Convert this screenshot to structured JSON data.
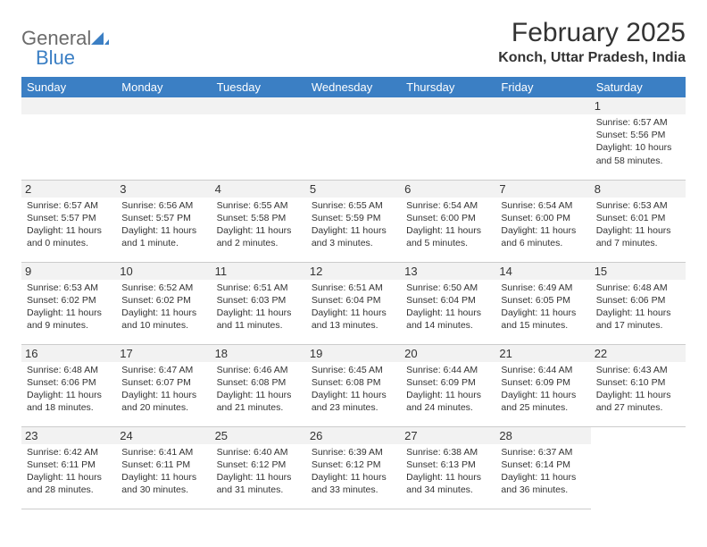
{
  "logo": {
    "text_gray": "General",
    "text_blue": "Blue",
    "shape_color": "#3b7fc4"
  },
  "header": {
    "month_title": "February 2025",
    "location": "Konch, Uttar Pradesh, India"
  },
  "colors": {
    "header_bg": "#3b7fc4",
    "header_text": "#ffffff",
    "spacer_bg": "#f2f2f2",
    "border": "#cccccc",
    "text": "#333333"
  },
  "weekdays": [
    "Sunday",
    "Monday",
    "Tuesday",
    "Wednesday",
    "Thursday",
    "Friday",
    "Saturday"
  ],
  "weeks": [
    [
      null,
      null,
      null,
      null,
      null,
      null,
      {
        "n": "1",
        "sunrise": "Sunrise: 6:57 AM",
        "sunset": "Sunset: 5:56 PM",
        "daylight": "Daylight: 10 hours and 58 minutes."
      }
    ],
    [
      {
        "n": "2",
        "sunrise": "Sunrise: 6:57 AM",
        "sunset": "Sunset: 5:57 PM",
        "daylight": "Daylight: 11 hours and 0 minutes."
      },
      {
        "n": "3",
        "sunrise": "Sunrise: 6:56 AM",
        "sunset": "Sunset: 5:57 PM",
        "daylight": "Daylight: 11 hours and 1 minute."
      },
      {
        "n": "4",
        "sunrise": "Sunrise: 6:55 AM",
        "sunset": "Sunset: 5:58 PM",
        "daylight": "Daylight: 11 hours and 2 minutes."
      },
      {
        "n": "5",
        "sunrise": "Sunrise: 6:55 AM",
        "sunset": "Sunset: 5:59 PM",
        "daylight": "Daylight: 11 hours and 3 minutes."
      },
      {
        "n": "6",
        "sunrise": "Sunrise: 6:54 AM",
        "sunset": "Sunset: 6:00 PM",
        "daylight": "Daylight: 11 hours and 5 minutes."
      },
      {
        "n": "7",
        "sunrise": "Sunrise: 6:54 AM",
        "sunset": "Sunset: 6:00 PM",
        "daylight": "Daylight: 11 hours and 6 minutes."
      },
      {
        "n": "8",
        "sunrise": "Sunrise: 6:53 AM",
        "sunset": "Sunset: 6:01 PM",
        "daylight": "Daylight: 11 hours and 7 minutes."
      }
    ],
    [
      {
        "n": "9",
        "sunrise": "Sunrise: 6:53 AM",
        "sunset": "Sunset: 6:02 PM",
        "daylight": "Daylight: 11 hours and 9 minutes."
      },
      {
        "n": "10",
        "sunrise": "Sunrise: 6:52 AM",
        "sunset": "Sunset: 6:02 PM",
        "daylight": "Daylight: 11 hours and 10 minutes."
      },
      {
        "n": "11",
        "sunrise": "Sunrise: 6:51 AM",
        "sunset": "Sunset: 6:03 PM",
        "daylight": "Daylight: 11 hours and 11 minutes."
      },
      {
        "n": "12",
        "sunrise": "Sunrise: 6:51 AM",
        "sunset": "Sunset: 6:04 PM",
        "daylight": "Daylight: 11 hours and 13 minutes."
      },
      {
        "n": "13",
        "sunrise": "Sunrise: 6:50 AM",
        "sunset": "Sunset: 6:04 PM",
        "daylight": "Daylight: 11 hours and 14 minutes."
      },
      {
        "n": "14",
        "sunrise": "Sunrise: 6:49 AM",
        "sunset": "Sunset: 6:05 PM",
        "daylight": "Daylight: 11 hours and 15 minutes."
      },
      {
        "n": "15",
        "sunrise": "Sunrise: 6:48 AM",
        "sunset": "Sunset: 6:06 PM",
        "daylight": "Daylight: 11 hours and 17 minutes."
      }
    ],
    [
      {
        "n": "16",
        "sunrise": "Sunrise: 6:48 AM",
        "sunset": "Sunset: 6:06 PM",
        "daylight": "Daylight: 11 hours and 18 minutes."
      },
      {
        "n": "17",
        "sunrise": "Sunrise: 6:47 AM",
        "sunset": "Sunset: 6:07 PM",
        "daylight": "Daylight: 11 hours and 20 minutes."
      },
      {
        "n": "18",
        "sunrise": "Sunrise: 6:46 AM",
        "sunset": "Sunset: 6:08 PM",
        "daylight": "Daylight: 11 hours and 21 minutes."
      },
      {
        "n": "19",
        "sunrise": "Sunrise: 6:45 AM",
        "sunset": "Sunset: 6:08 PM",
        "daylight": "Daylight: 11 hours and 23 minutes."
      },
      {
        "n": "20",
        "sunrise": "Sunrise: 6:44 AM",
        "sunset": "Sunset: 6:09 PM",
        "daylight": "Daylight: 11 hours and 24 minutes."
      },
      {
        "n": "21",
        "sunrise": "Sunrise: 6:44 AM",
        "sunset": "Sunset: 6:09 PM",
        "daylight": "Daylight: 11 hours and 25 minutes."
      },
      {
        "n": "22",
        "sunrise": "Sunrise: 6:43 AM",
        "sunset": "Sunset: 6:10 PM",
        "daylight": "Daylight: 11 hours and 27 minutes."
      }
    ],
    [
      {
        "n": "23",
        "sunrise": "Sunrise: 6:42 AM",
        "sunset": "Sunset: 6:11 PM",
        "daylight": "Daylight: 11 hours and 28 minutes."
      },
      {
        "n": "24",
        "sunrise": "Sunrise: 6:41 AM",
        "sunset": "Sunset: 6:11 PM",
        "daylight": "Daylight: 11 hours and 30 minutes."
      },
      {
        "n": "25",
        "sunrise": "Sunrise: 6:40 AM",
        "sunset": "Sunset: 6:12 PM",
        "daylight": "Daylight: 11 hours and 31 minutes."
      },
      {
        "n": "26",
        "sunrise": "Sunrise: 6:39 AM",
        "sunset": "Sunset: 6:12 PM",
        "daylight": "Daylight: 11 hours and 33 minutes."
      },
      {
        "n": "27",
        "sunrise": "Sunrise: 6:38 AM",
        "sunset": "Sunset: 6:13 PM",
        "daylight": "Daylight: 11 hours and 34 minutes."
      },
      {
        "n": "28",
        "sunrise": "Sunrise: 6:37 AM",
        "sunset": "Sunset: 6:14 PM",
        "daylight": "Daylight: 11 hours and 36 minutes."
      },
      null
    ]
  ]
}
